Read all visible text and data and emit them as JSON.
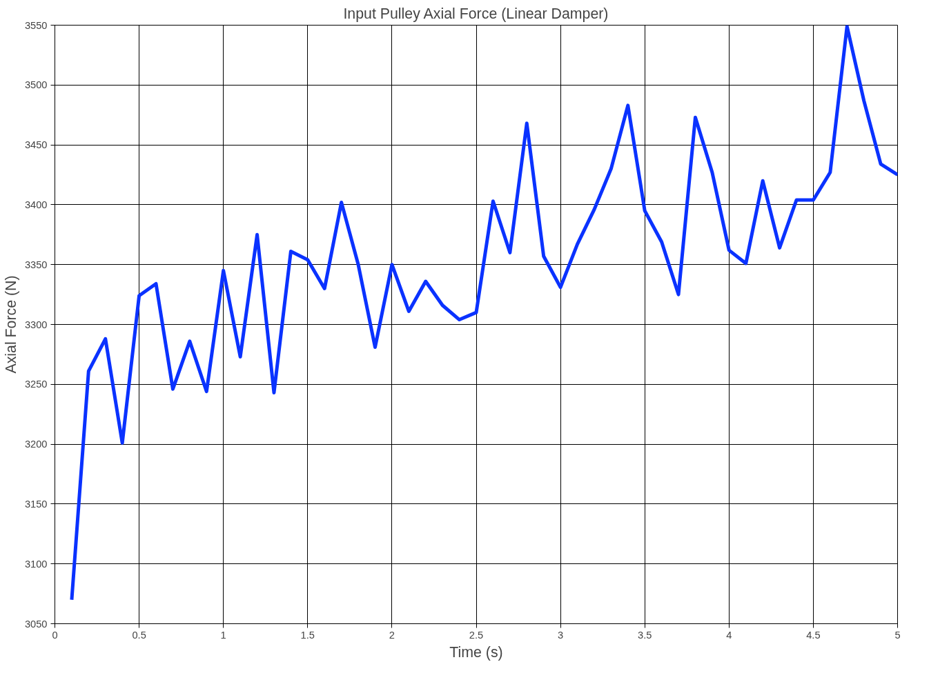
{
  "chart_data": {
    "type": "line",
    "title": "Input Pulley Axial Force (Linear Damper)",
    "xlabel": "Time (s)",
    "ylabel": "Axial Force (N)",
    "x": [
      0.1,
      0.2,
      0.3,
      0.4,
      0.5,
      0.6,
      0.7,
      0.8,
      0.9,
      1.0,
      1.1,
      1.2,
      1.3,
      1.4,
      1.5,
      1.6,
      1.7,
      1.8,
      1.9,
      2.0,
      2.1,
      2.2,
      2.3,
      2.4,
      2.5,
      2.6,
      2.7,
      2.8,
      2.9,
      3.0,
      3.1,
      3.2,
      3.3,
      3.4,
      3.5,
      3.6,
      3.7,
      3.8,
      3.9,
      4.0,
      4.1,
      4.2,
      4.3,
      4.4,
      4.5,
      4.6,
      4.7,
      4.8,
      4.9,
      5.0
    ],
    "series": [
      {
        "color": "#0a32ff",
        "values": [
          3070,
          3261,
          3288,
          3201,
          3324,
          3334,
          3246,
          3286,
          3244,
          3345,
          3273,
          3375,
          3243,
          3361,
          3354,
          3330,
          3402,
          3350,
          3281,
          3350,
          3311,
          3336,
          3316,
          3304,
          3310,
          3403,
          3360,
          3468,
          3357,
          3331,
          3367,
          3396,
          3430,
          3483,
          3395,
          3369,
          3325,
          3473,
          3427,
          3362,
          3351,
          3420,
          3364,
          3404,
          3404,
          3427,
          3549,
          3487,
          3434,
          3425
        ]
      }
    ],
    "xlim": [
      0,
      5
    ],
    "ylim": [
      3050,
      3550
    ],
    "xticks": [
      0,
      0.5,
      1,
      1.5,
      2,
      2.5,
      3,
      3.5,
      4,
      4.5,
      5
    ],
    "yticks": [
      3050,
      3100,
      3150,
      3200,
      3250,
      3300,
      3350,
      3400,
      3450,
      3500,
      3550
    ],
    "grid": true,
    "line_style": "solid",
    "marker": "none"
  }
}
